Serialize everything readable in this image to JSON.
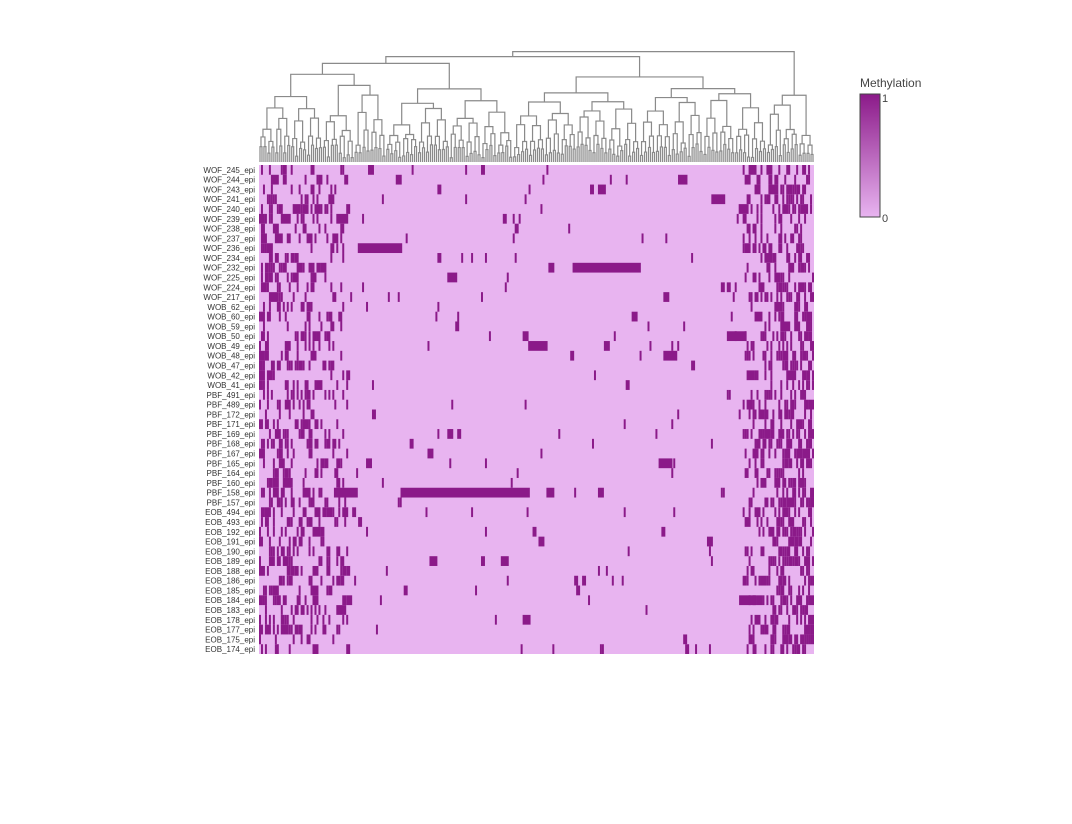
{
  "chart_data": {
    "type": "heatmap",
    "title": "",
    "xlabel": "",
    "ylabel": "",
    "rows": [
      "WOF_245_epi",
      "WOF_244_epi",
      "WOF_243_epi",
      "WOF_241_epi",
      "WOF_240_epi",
      "WOF_239_epi",
      "WOF_238_epi",
      "WOF_237_epi",
      "WOF_236_epi",
      "WOF_234_epi",
      "WOF_232_epi",
      "WOF_225_epi",
      "WOF_224_epi",
      "WOF_217_epi",
      "WOB_62_epi",
      "WOB_60_epi",
      "WOB_59_epi",
      "WOB_50_epi",
      "WOB_49_epi",
      "WOB_48_epi",
      "WOB_47_epi",
      "WOB_42_epi",
      "WOB_41_epi",
      "PBF_491_epi",
      "PBF_489_epi",
      "PBF_172_epi",
      "PBF_171_epi",
      "PBF_169_epi",
      "PBF_168_epi",
      "PBF_167_epi",
      "PBF_165_epi",
      "PBF_164_epi",
      "PBF_160_epi",
      "PBF_158_epi",
      "PBF_157_epi",
      "EOB_494_epi",
      "EOB_493_epi",
      "EOB_192_epi",
      "EOB_191_epi",
      "EOB_190_epi",
      "EOB_189_epi",
      "EOB_188_epi",
      "EOB_186_epi",
      "EOB_185_epi",
      "EOB_184_epi",
      "EOB_183_epi",
      "EOB_178_epi",
      "EOB_177_epi",
      "EOB_175_epi",
      "EOB_174_epi"
    ],
    "n_columns": 280,
    "value_range": [
      0,
      1
    ],
    "colorscale": {
      "low": "#e8b4f0",
      "high": "#8b1a89"
    },
    "colorbar": {
      "title": "Methylation",
      "ticks": [
        "1",
        "0"
      ]
    },
    "column_dendrogram": true,
    "dendrogram_color": "#8a8a8a",
    "row_density_profile": {
      "left_block_end": 0.16,
      "right_block_start": 0.87,
      "left_density": 0.35,
      "middle_density": 0.015,
      "right_density": 0.45
    },
    "highlighted_runs": [
      {
        "row": "WOF_244_epi",
        "col_from": 0.755,
        "col_to": 0.772
      },
      {
        "row": "WOF_241_epi",
        "col_from": 0.815,
        "col_to": 0.84
      },
      {
        "row": "WOF_236_epi",
        "col_from": 0.178,
        "col_to": 0.258
      },
      {
        "row": "WOF_232_epi",
        "col_from": 0.565,
        "col_to": 0.688
      },
      {
        "row": "WOB_50_epi",
        "col_from": 0.843,
        "col_to": 0.878
      },
      {
        "row": "WOB_49_epi",
        "col_from": 0.485,
        "col_to": 0.52
      },
      {
        "row": "PBF_165_epi",
        "col_from": 0.72,
        "col_to": 0.745
      },
      {
        "row": "PBF_158_epi",
        "col_from": 0.255,
        "col_to": 0.488
      },
      {
        "row": "PBF_158_epi",
        "col_from": 0.135,
        "col_to": 0.178
      },
      {
        "row": "EOB_184_epi",
        "col_from": 0.865,
        "col_to": 0.895
      }
    ]
  }
}
